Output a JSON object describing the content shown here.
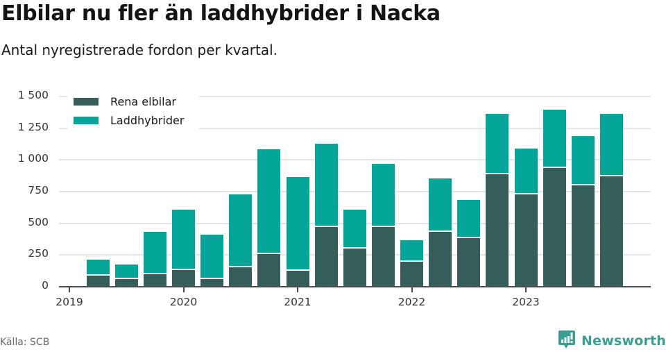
{
  "header": {
    "title": "Elbilar nu fler än laddhybrider i Nacka",
    "subtitle": "Antal nyregistrerade fordon per kvartal."
  },
  "legend": {
    "items": [
      {
        "label": "Rena elbilar",
        "color": "#355e5a"
      },
      {
        "label": "Laddhybrider",
        "color": "#02a598"
      }
    ]
  },
  "footer": {
    "source": "Källa: SCB",
    "brand": "Newsworthy",
    "brand_color": "#3a9e93"
  },
  "chart_data": {
    "type": "bar",
    "stacked": true,
    "title": "Elbilar nu fler än laddhybrider i Nacka",
    "subtitle": "Antal nyregistrerade fordon per kvartal.",
    "xlabel": "",
    "ylabel": "",
    "ylim": [
      0,
      1500
    ],
    "yticks": [
      0,
      250,
      500,
      750,
      1000,
      1250,
      1500
    ],
    "ytick_labels": [
      "0",
      "250",
      "500",
      "750",
      "1 000",
      "1 250",
      "1 500"
    ],
    "xticks": [
      "2019",
      "2020",
      "2021",
      "2022",
      "2023"
    ],
    "grid": true,
    "legend_position": "top-left",
    "categories": [
      "2019 Q2",
      "2019 Q3",
      "2019 Q4",
      "2020 Q1",
      "2020 Q2",
      "2020 Q3",
      "2020 Q4",
      "2021 Q1",
      "2021 Q2",
      "2021 Q3",
      "2021 Q4",
      "2022 Q1",
      "2022 Q2",
      "2022 Q3",
      "2022 Q4",
      "2023 Q1",
      "2023 Q2",
      "2023 Q3",
      "2023 Q4"
    ],
    "series": [
      {
        "name": "Rena elbilar",
        "color": "#355e5a",
        "values": [
          90,
          60,
          100,
          133,
          60,
          155,
          256,
          128,
          469,
          300,
          469,
          197,
          435,
          385,
          889,
          726,
          938,
          799,
          870
        ]
      },
      {
        "name": "Laddhybrider",
        "color": "#02a598",
        "values": [
          122,
          117,
          333,
          475,
          352,
          572,
          829,
          735,
          659,
          306,
          500,
          168,
          417,
          299,
          472,
          362,
          456,
          387,
          491
        ]
      }
    ],
    "totals": [
      212,
      177,
      433,
      608,
      412,
      727,
      1085,
      863,
      1128,
      606,
      969,
      365,
      852,
      684,
      1361,
      1088,
      1394,
      1186,
      1361
    ]
  }
}
